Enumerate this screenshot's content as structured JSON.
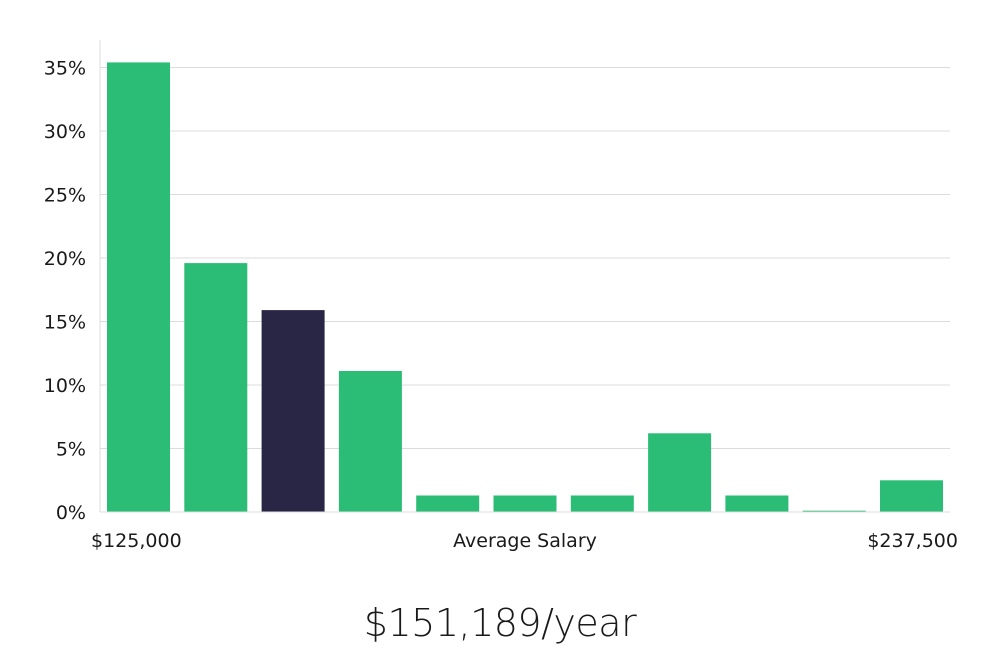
{
  "chart_data": {
    "type": "bar",
    "values": [
      35.4,
      19.6,
      15.9,
      11.1,
      1.3,
      1.3,
      1.3,
      6.2,
      1.3,
      0.1,
      2.5
    ],
    "highlight_index": 2,
    "ylim": [
      0,
      35
    ],
    "y_ticks": [
      {
        "value": 0,
        "label": "0%"
      },
      {
        "value": 5,
        "label": "5%"
      },
      {
        "value": 10,
        "label": "10%"
      },
      {
        "value": 15,
        "label": "15%"
      },
      {
        "value": 20,
        "label": "20%"
      },
      {
        "value": 25,
        "label": "25%"
      },
      {
        "value": 30,
        "label": "30%"
      },
      {
        "value": 35,
        "label": "35%"
      }
    ],
    "x_min_label": "$125,000",
    "x_max_label": "$237,500",
    "xlabel": "Average Salary",
    "grid": true,
    "colors": {
      "bar": "#2bbd75",
      "highlight": "#282545",
      "grid": "#dcdcdc"
    }
  },
  "summary": {
    "average_salary": "$151,189/year"
  }
}
